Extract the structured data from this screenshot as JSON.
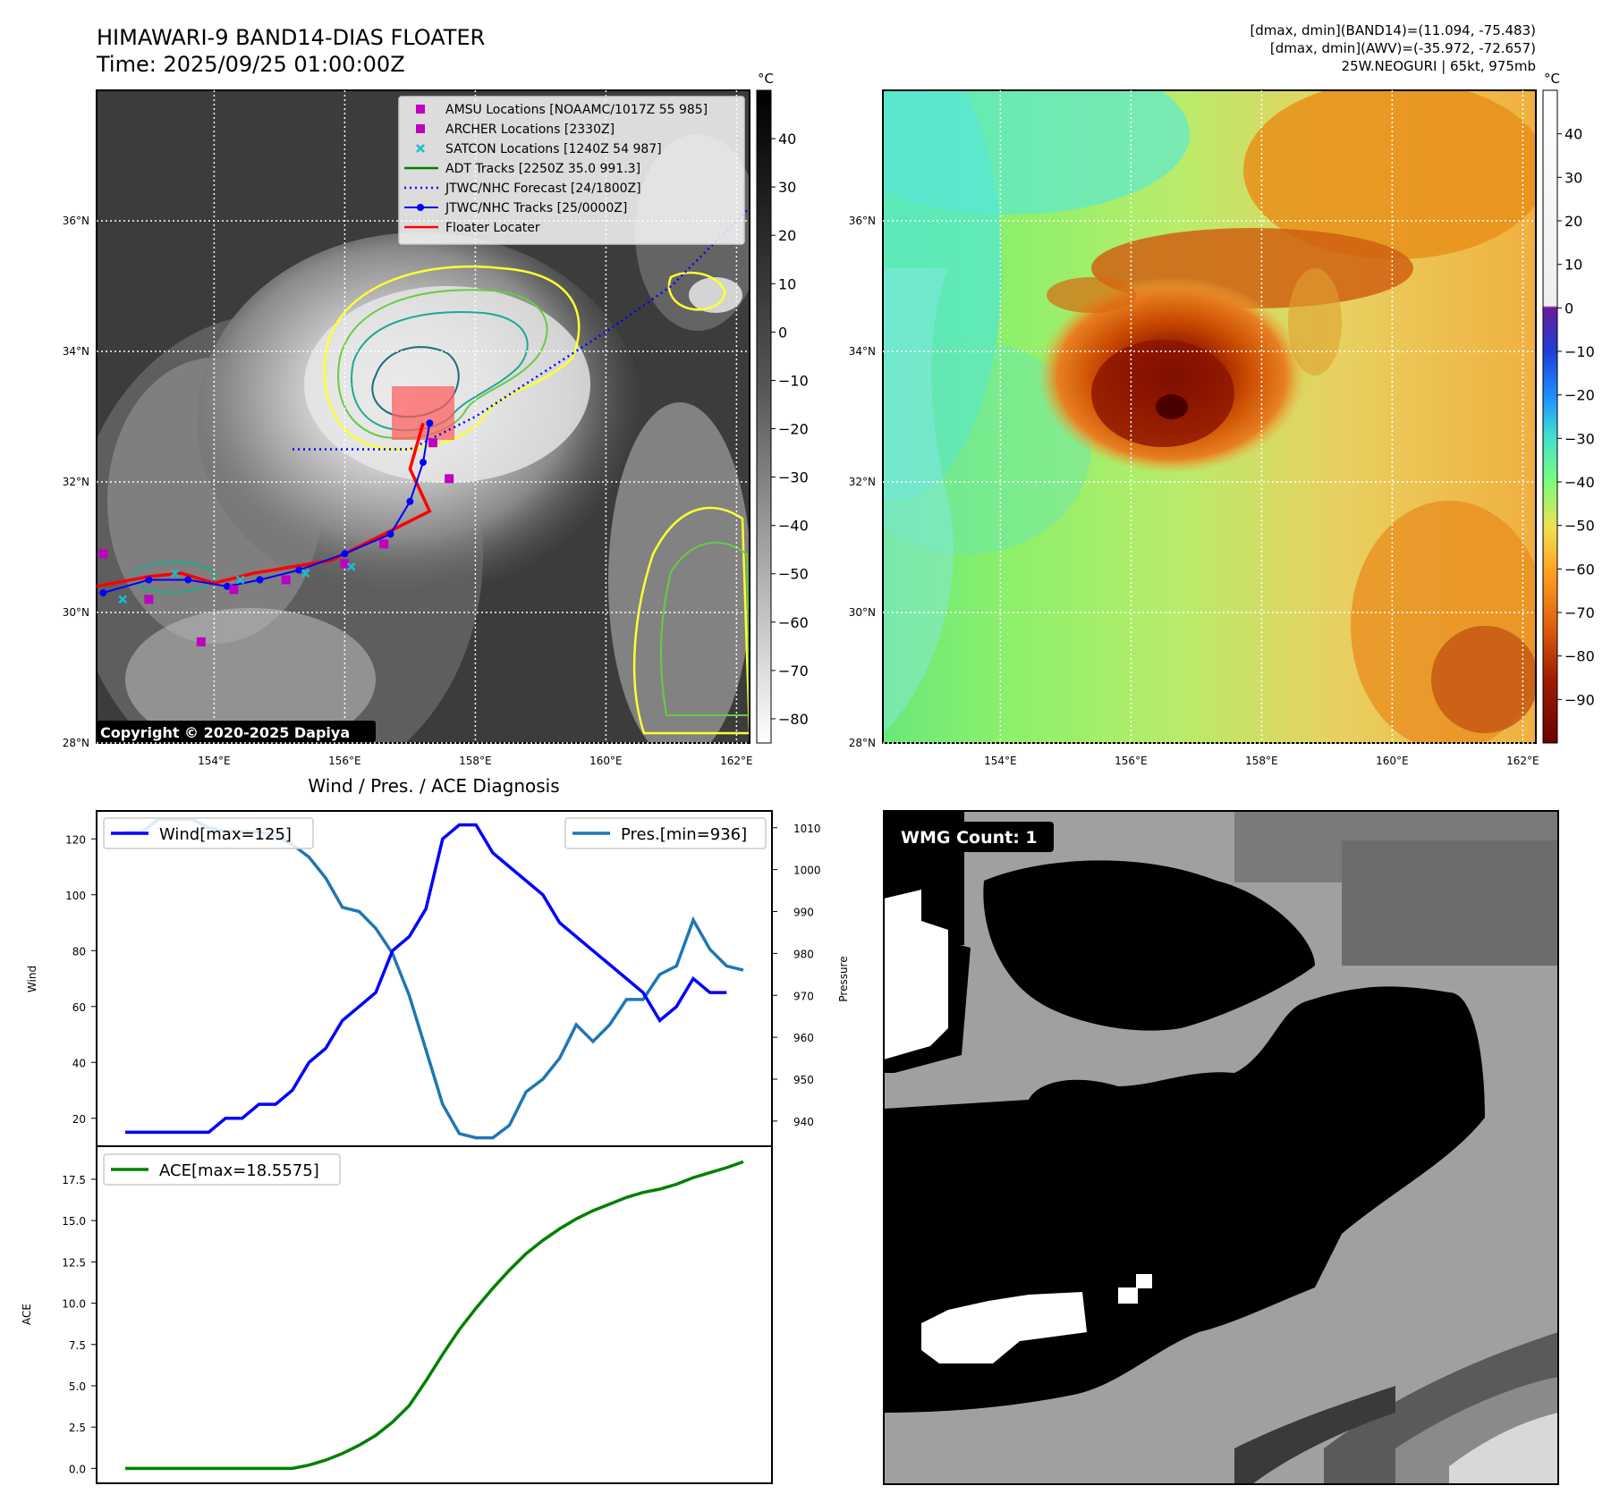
{
  "title": {
    "line1": "HIMAWARI-9 BAND14-DIAS FLOATER",
    "line2": "Time: 2025/09/25 01:00:00Z"
  },
  "info": {
    "line1": "[dmax, dmin](BAND14)=(11.094, -75.483)",
    "line2": "[dmax, dmin](AWV)=(-35.972, -72.657)",
    "line3": "25W.NEOGURI | 65kt, 975mb"
  },
  "copyright": "Copyright © 2020-2025 Dapiya",
  "map_axes": {
    "lon_ticks": [
      "154°E",
      "156°E",
      "158°E",
      "160°E",
      "162°E"
    ],
    "lat_ticks": [
      "36°N",
      "34°N",
      "32°N",
      "30°N",
      "28°N"
    ],
    "lon_values": [
      154,
      156,
      158,
      160,
      162
    ],
    "lat_values": [
      36,
      34,
      32,
      30,
      28
    ],
    "lon_range": [
      152.2,
      162.2
    ],
    "lat_range": [
      28,
      38
    ]
  },
  "legend": [
    {
      "label": "AMSU Locations [NOAAMC/1017Z 55 985]",
      "marker": "square",
      "color": "#bf00bf"
    },
    {
      "label": "ARCHER Locations [2330Z]",
      "marker": "square",
      "color": "#bf00bf"
    },
    {
      "label": "SATCON Locations [1240Z 54 987]",
      "marker": "x",
      "color": "#17becf"
    },
    {
      "label": "ADT Tracks [2250Z 35.0 991.3]",
      "marker": "line",
      "color": "#008000"
    },
    {
      "label": "JTWC/NHC Forecast [24/1800Z]",
      "marker": "dotted",
      "color": "#0000ff"
    },
    {
      "label": "JTWC/NHC Tracks [25/0000Z]",
      "marker": "line-dot",
      "color": "#0000ff"
    },
    {
      "label": "Floater Locater",
      "marker": "line",
      "color": "#ff0000"
    }
  ],
  "colorbar_left": {
    "unit": "°C",
    "ticks": [
      "40",
      "30",
      "20",
      "10",
      "0",
      "−10",
      "−20",
      "−30",
      "−40",
      "−50",
      "−60",
      "−70",
      "−80"
    ],
    "values": [
      40,
      30,
      20,
      10,
      0,
      -10,
      -20,
      -30,
      -40,
      -50,
      -60,
      -70,
      -80
    ],
    "range": [
      -85,
      50
    ]
  },
  "colorbar_right": {
    "unit": "°C",
    "ticks": [
      "40",
      "30",
      "20",
      "10",
      "0",
      "−10",
      "−20",
      "−30",
      "−40",
      "−50",
      "−60",
      "−70",
      "−80",
      "−90"
    ],
    "values": [
      40,
      30,
      20,
      10,
      0,
      -10,
      -20,
      -30,
      -40,
      -50,
      -60,
      -70,
      -80,
      -90
    ],
    "range": [
      -100,
      50
    ]
  },
  "tracks": {
    "jtwc_track": [
      [
        152.3,
        30.3
      ],
      [
        153.0,
        30.5
      ],
      [
        153.6,
        30.5
      ],
      [
        154.2,
        30.4
      ],
      [
        154.7,
        30.5
      ],
      [
        155.3,
        30.65
      ],
      [
        156.0,
        30.9
      ],
      [
        156.7,
        31.2
      ],
      [
        157.0,
        31.7
      ],
      [
        157.2,
        32.3
      ],
      [
        157.3,
        32.9
      ]
    ],
    "jtwc_forecast": [
      [
        155.2,
        32.5
      ],
      [
        157.0,
        32.5
      ],
      [
        158.0,
        33.0
      ],
      [
        160.0,
        34.3
      ],
      [
        161.0,
        35.0
      ],
      [
        162.2,
        36.2
      ]
    ],
    "floater": [
      [
        152.2,
        30.4
      ],
      [
        153.0,
        30.55
      ],
      [
        153.5,
        30.6
      ],
      [
        154.0,
        30.45
      ],
      [
        154.6,
        30.6
      ],
      [
        155.2,
        30.7
      ],
      [
        155.8,
        30.8
      ],
      [
        156.6,
        31.2
      ],
      [
        157.0,
        31.4
      ],
      [
        157.3,
        31.55
      ],
      [
        157.0,
        32.2
      ],
      [
        157.2,
        32.9
      ]
    ],
    "amsu": [
      [
        152.3,
        30.9
      ],
      [
        153.0,
        30.2
      ],
      [
        153.8,
        29.55
      ],
      [
        154.3,
        30.35
      ],
      [
        155.1,
        30.5
      ],
      [
        156.0,
        30.75
      ],
      [
        156.6,
        31.05
      ],
      [
        157.6,
        32.05
      ],
      [
        157.35,
        32.6
      ]
    ],
    "satcon": [
      [
        152.6,
        30.2
      ],
      [
        153.4,
        30.6
      ],
      [
        154.4,
        30.5
      ],
      [
        155.4,
        30.6
      ],
      [
        156.1,
        30.7
      ]
    ]
  },
  "wind_pres_chart": {
    "title": "Wind / Pres. / ACE Diagnosis",
    "wind_legend": "Wind[max=125]",
    "pres_legend": "Pres.[min=936]",
    "ylabel_left": "Wind",
    "ylabel_right": "Pressure",
    "left_ticks": [
      "120",
      "100",
      "80",
      "60",
      "40",
      "20"
    ],
    "left_values": [
      120,
      100,
      80,
      60,
      40,
      20
    ],
    "right_ticks": [
      "1010",
      "1000",
      "990",
      "980",
      "970",
      "960",
      "950",
      "940"
    ],
    "right_values": [
      1010,
      1000,
      990,
      980,
      970,
      960,
      950,
      940
    ]
  },
  "chart_data": [
    {
      "type": "line",
      "title": "Wind / Pres. / ACE Diagnosis",
      "x": [
        0,
        1,
        2,
        3,
        4,
        5,
        6,
        7,
        8,
        9,
        10,
        11,
        12,
        13,
        14,
        15,
        16,
        17,
        18,
        19,
        20,
        21,
        22,
        23,
        24,
        25,
        26,
        27,
        28,
        29,
        30,
        31,
        32,
        33,
        34,
        35,
        36,
        37
      ],
      "series": [
        {
          "name": "Wind[max=125]",
          "axis": "left",
          "color": "#0000ff",
          "values": [
            15,
            15,
            15,
            15,
            15,
            15,
            20,
            20,
            25,
            25,
            30,
            40,
            45,
            55,
            60,
            65,
            80,
            85,
            95,
            120,
            125,
            125,
            115,
            110,
            105,
            100,
            90,
            85,
            80,
            75,
            70,
            65,
            55,
            60,
            70,
            65,
            65,
            null
          ]
        },
        {
          "name": "Pres.[min=936]",
          "axis": "right",
          "color": "#1f77b4",
          "values": [
            1009,
            1009,
            1012,
            1012,
            1012,
            1010,
            1009,
            1009,
            1009,
            1008,
            1006,
            1003,
            998,
            991,
            990,
            986,
            980,
            970,
            957,
            944,
            937,
            936,
            936,
            939,
            947,
            950,
            955,
            963,
            959,
            963,
            969,
            969,
            975,
            977,
            988,
            981,
            977,
            976
          ]
        }
      ],
      "ylim": [
        10,
        130
      ],
      "ylim_right": [
        934,
        1014
      ]
    },
    {
      "type": "line",
      "title": "",
      "x": [
        0,
        1,
        2,
        3,
        4,
        5,
        6,
        7,
        8,
        9,
        10,
        11,
        12,
        13,
        14,
        15,
        16,
        17,
        18,
        19,
        20,
        21,
        22,
        23,
        24,
        25,
        26,
        27,
        28,
        29,
        30,
        31,
        32,
        33,
        34,
        35,
        36,
        37
      ],
      "series": [
        {
          "name": "ACE[max=18.5575]",
          "color": "#008000",
          "values": [
            0,
            0,
            0,
            0,
            0,
            0,
            0,
            0,
            0,
            0,
            0,
            0.2,
            0.5,
            0.9,
            1.4,
            2.0,
            2.8,
            3.8,
            5.3,
            6.9,
            8.4,
            9.7,
            10.9,
            12.0,
            13.0,
            13.8,
            14.5,
            15.1,
            15.6,
            16.0,
            16.4,
            16.7,
            16.9,
            17.2,
            17.6,
            17.9,
            18.2,
            18.5575
          ]
        }
      ],
      "xlabel": "",
      "ylabel": "ACE",
      "ylim": [
        -0.9,
        19.5
      ],
      "yticks": [
        "17.5",
        "15.0",
        "12.5",
        "10.0",
        "7.5",
        "5.0",
        "2.5",
        "0.0"
      ],
      "ytick_values": [
        17.5,
        15.0,
        12.5,
        10.0,
        7.5,
        5.0,
        2.5,
        0.0
      ]
    }
  ],
  "wmg": {
    "label": "WMG Count: 1"
  }
}
